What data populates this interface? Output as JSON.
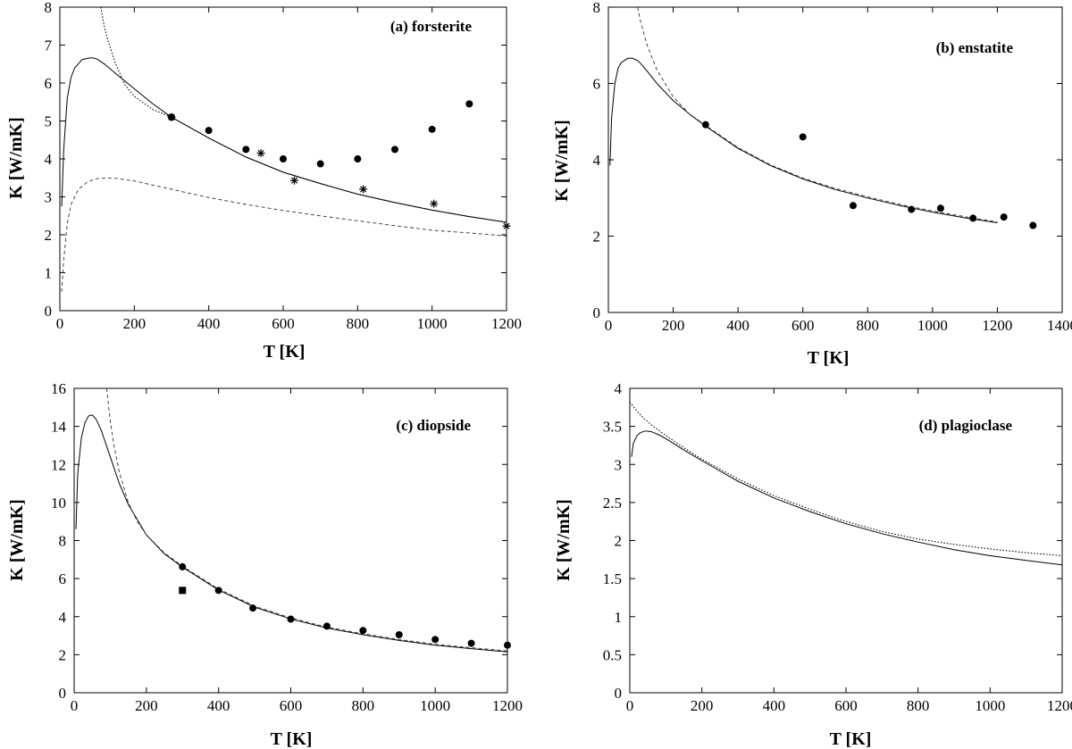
{
  "chart_data": [
    {
      "type": "line",
      "title": "(a) forsterite",
      "xlabel": "T [K]",
      "ylabel": "K [W/mK]",
      "xlim": [
        0,
        1200
      ],
      "ylim": [
        0,
        8
      ],
      "xticks": [
        0,
        200,
        400,
        600,
        800,
        1000,
        1200
      ],
      "yticks": [
        0,
        1,
        2,
        3,
        4,
        5,
        6,
        7,
        8
      ],
      "grid": false,
      "series": [
        {
          "name": "model (solid)",
          "style": "solid",
          "x": [
            5,
            10,
            20,
            30,
            40,
            60,
            80,
            90,
            100,
            120,
            150,
            200,
            250,
            300,
            400,
            500,
            600,
            700,
            800,
            900,
            1000,
            1100,
            1200
          ],
          "y": [
            2.75,
            4.2,
            5.6,
            6.15,
            6.4,
            6.62,
            6.66,
            6.66,
            6.63,
            6.5,
            6.25,
            5.85,
            5.45,
            5.1,
            4.55,
            4.05,
            3.65,
            3.35,
            3.07,
            2.85,
            2.65,
            2.48,
            2.33
          ]
        },
        {
          "name": "model (dotted)",
          "style": "dotted",
          "x": [
            110,
            120,
            130,
            150,
            175,
            200,
            250,
            300,
            400,
            500,
            600,
            700,
            800,
            900,
            1000,
            1100,
            1200
          ],
          "y": [
            8.0,
            7.45,
            7.1,
            6.5,
            5.95,
            5.65,
            5.3,
            5.1,
            4.55,
            4.05,
            3.65,
            3.35,
            3.07,
            2.85,
            2.65,
            2.48,
            2.33
          ]
        },
        {
          "name": "model (dashed, lower)",
          "style": "dashed",
          "x": [
            5,
            10,
            20,
            30,
            50,
            75,
            100,
            130,
            150,
            200,
            300,
            400,
            500,
            600,
            700,
            800,
            900,
            1000,
            1100,
            1200
          ],
          "y": [
            0.5,
            1.3,
            2.3,
            2.8,
            3.2,
            3.4,
            3.48,
            3.5,
            3.49,
            3.42,
            3.2,
            2.98,
            2.8,
            2.64,
            2.5,
            2.37,
            2.24,
            2.12,
            2.05,
            1.97
          ]
        },
        {
          "name": "data (circles)",
          "style": "circle",
          "x": [
            300,
            400,
            500,
            600,
            700,
            800,
            900,
            1000,
            1100
          ],
          "y": [
            5.1,
            4.75,
            4.25,
            4.0,
            3.87,
            4.0,
            4.25,
            4.78,
            5.45
          ]
        },
        {
          "name": "data (asterisks)",
          "style": "asterisk",
          "x": [
            300,
            540,
            630,
            815,
            1005,
            1200
          ],
          "y": [
            5.1,
            4.15,
            3.43,
            3.2,
            2.82,
            2.23
          ]
        }
      ]
    },
    {
      "type": "line",
      "title": "(b) enstatite",
      "xlabel": "T [K]",
      "ylabel": "K [W/mK]",
      "xlim": [
        0,
        1400
      ],
      "ylim": [
        0,
        8
      ],
      "xticks": [
        0,
        200,
        400,
        600,
        800,
        1000,
        1200,
        1400
      ],
      "yticks": [
        0,
        2,
        4,
        6,
        8
      ],
      "grid": false,
      "series": [
        {
          "name": "model (solid)",
          "style": "solid",
          "x": [
            5,
            10,
            20,
            30,
            40,
            60,
            75,
            90,
            100,
            120,
            150,
            200,
            250,
            300,
            400,
            500,
            600,
            700,
            800,
            900,
            1000,
            1100,
            1200
          ],
          "y": [
            3.85,
            5.1,
            6.0,
            6.4,
            6.55,
            6.66,
            6.66,
            6.6,
            6.52,
            6.32,
            6.0,
            5.55,
            5.2,
            4.88,
            4.3,
            3.85,
            3.5,
            3.22,
            3.0,
            2.8,
            2.63,
            2.48,
            2.35
          ]
        },
        {
          "name": "model (dashed)",
          "style": "dashed",
          "x": [
            90,
            100,
            120,
            150,
            200,
            250,
            300,
            400,
            500,
            600,
            700,
            800,
            900,
            1000,
            1100,
            1200
          ],
          "y": [
            8.0,
            7.6,
            7.0,
            6.35,
            5.65,
            5.2,
            4.9,
            4.32,
            3.87,
            3.52,
            3.25,
            3.03,
            2.83,
            2.66,
            2.51,
            2.37
          ]
        },
        {
          "name": "data (circles)",
          "style": "circle",
          "x": [
            300,
            600,
            755,
            935,
            1025,
            1125,
            1220,
            1310
          ],
          "y": [
            4.92,
            4.6,
            2.8,
            2.7,
            2.73,
            2.47,
            2.5,
            2.28
          ]
        }
      ]
    },
    {
      "type": "line",
      "title": "(c) diopside",
      "xlabel": "T [K]",
      "ylabel": "K [W/mK]",
      "xlim": [
        0,
        1200
      ],
      "ylim": [
        0,
        16
      ],
      "xticks": [
        0,
        200,
        400,
        600,
        800,
        1000,
        1200
      ],
      "yticks": [
        0,
        2,
        4,
        6,
        8,
        10,
        12,
        14,
        16
      ],
      "grid": false,
      "series": [
        {
          "name": "model (solid)",
          "style": "solid",
          "x": [
            5,
            10,
            20,
            30,
            40,
            50,
            60,
            75,
            100,
            125,
            150,
            200,
            250,
            300,
            400,
            500,
            600,
            700,
            800,
            900,
            1000,
            1100,
            1200
          ],
          "y": [
            8.6,
            11.5,
            13.4,
            14.2,
            14.55,
            14.6,
            14.4,
            13.8,
            12.4,
            11.0,
            9.9,
            8.3,
            7.3,
            6.6,
            5.4,
            4.5,
            3.88,
            3.4,
            3.05,
            2.75,
            2.5,
            2.32,
            2.15
          ]
        },
        {
          "name": "model (dashed)",
          "style": "dashed",
          "x": [
            90,
            100,
            110,
            125,
            150,
            175,
            200,
            250,
            300,
            400,
            500,
            600,
            700,
            800,
            900,
            1000,
            1100,
            1200
          ],
          "y": [
            16.0,
            14.3,
            13.0,
            11.6,
            10.0,
            9.0,
            8.3,
            7.35,
            6.65,
            5.45,
            4.55,
            3.93,
            3.45,
            3.1,
            2.8,
            2.55,
            2.37,
            2.2
          ]
        },
        {
          "name": "data (circles)",
          "style": "circle",
          "x": [
            300,
            400,
            495,
            600,
            700,
            800,
            900,
            1000,
            1100,
            1200
          ],
          "y": [
            6.62,
            5.38,
            4.45,
            3.87,
            3.5,
            3.27,
            3.05,
            2.8,
            2.6,
            2.5
          ]
        },
        {
          "name": "data (square)",
          "style": "square",
          "x": [
            300
          ],
          "y": [
            5.38
          ]
        }
      ]
    },
    {
      "type": "line",
      "title": "(d) plagioclase",
      "xlabel": "T [K]",
      "ylabel": "K [W/mK]",
      "xlim": [
        0,
        1200
      ],
      "ylim": [
        0,
        4
      ],
      "xticks": [
        0,
        200,
        400,
        600,
        800,
        1000,
        1200
      ],
      "yticks": [
        0,
        0.5,
        1,
        1.5,
        2,
        2.5,
        3,
        3.5,
        4
      ],
      "grid": false,
      "series": [
        {
          "name": "model (solid)",
          "style": "solid",
          "x": [
            5,
            10,
            20,
            30,
            45,
            60,
            80,
            100,
            150,
            200,
            300,
            400,
            500,
            600,
            700,
            800,
            900,
            1000,
            1100,
            1200
          ],
          "y": [
            3.1,
            3.28,
            3.38,
            3.42,
            3.44,
            3.43,
            3.39,
            3.34,
            3.19,
            3.05,
            2.78,
            2.56,
            2.38,
            2.22,
            2.09,
            1.98,
            1.88,
            1.8,
            1.74,
            1.68
          ]
        },
        {
          "name": "model (dotted)",
          "style": "dotted",
          "x": [
            0,
            20,
            40,
            60,
            100,
            150,
            200,
            300,
            400,
            500,
            600,
            700,
            800,
            900,
            1000,
            1100,
            1200
          ],
          "y": [
            3.82,
            3.7,
            3.6,
            3.52,
            3.38,
            3.22,
            3.07,
            2.81,
            2.59,
            2.41,
            2.25,
            2.12,
            2.02,
            1.95,
            1.89,
            1.84,
            1.8
          ]
        }
      ]
    }
  ]
}
